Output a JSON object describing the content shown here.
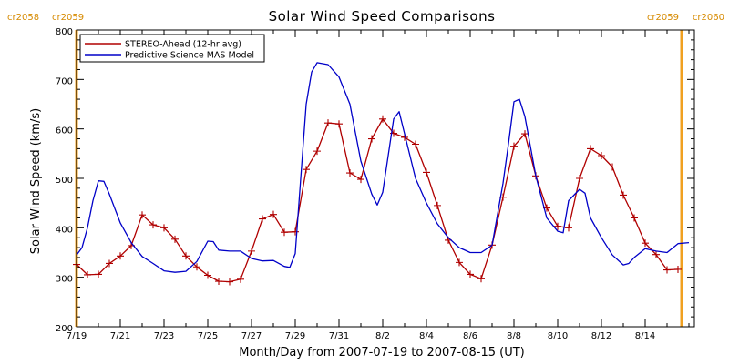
{
  "chart_data": {
    "type": "line",
    "title": "Solar Wind Speed Comparisons",
    "xlabel": "Month/Day from 2007-07-19 to 2007-08-15 (UT)",
    "ylabel": "Solar Wind Speed (km/s)",
    "ylim": [
      200,
      800
    ],
    "yticks": [
      200,
      300,
      400,
      500,
      600,
      700,
      800
    ],
    "xlim": [
      "2007-07-19T00:00",
      "2007-08-16T06:00"
    ],
    "xticks": [
      {
        "date": "2007-07-19",
        "label": "7/19"
      },
      {
        "date": "2007-07-21",
        "label": "7/21"
      },
      {
        "date": "2007-07-23",
        "label": "7/23"
      },
      {
        "date": "2007-07-25",
        "label": "7/25"
      },
      {
        "date": "2007-07-27",
        "label": "7/27"
      },
      {
        "date": "2007-07-29",
        "label": "7/29"
      },
      {
        "date": "2007-07-31",
        "label": "7/31"
      },
      {
        "date": "2007-08-02",
        "label": "8/2"
      },
      {
        "date": "2007-08-04",
        "label": "8/4"
      },
      {
        "date": "2007-08-06",
        "label": "8/6"
      },
      {
        "date": "2007-08-08",
        "label": "8/8"
      },
      {
        "date": "2007-08-10",
        "label": "8/10"
      },
      {
        "date": "2007-08-12",
        "label": "8/12"
      },
      {
        "date": "2007-08-14",
        "label": "8/14"
      }
    ],
    "grid": false,
    "legend_position": "top-left",
    "carrington_boundaries": [
      {
        "date": "2007-07-19T00:00",
        "left_label": "cr2058",
        "right_label": "cr2059",
        "label_side": "left"
      },
      {
        "date": "2007-08-15T16:00",
        "left_label": "cr2059",
        "right_label": "cr2060",
        "label_side": "right"
      }
    ],
    "boundary_color": "#f0a020",
    "series": [
      {
        "name": "STEREO-Ahead (12-hr avg)",
        "color": "#b00000",
        "markers": true,
        "points": [
          [
            "2007-07-19T00:00",
            326
          ],
          [
            "2007-07-19T12:00",
            305
          ],
          [
            "2007-07-20T00:00",
            306
          ],
          [
            "2007-07-20T12:00",
            328
          ],
          [
            "2007-07-21T00:00",
            343
          ],
          [
            "2007-07-21T12:00",
            364
          ],
          [
            "2007-07-22T00:00",
            426
          ],
          [
            "2007-07-22T12:00",
            406
          ],
          [
            "2007-07-23T00:00",
            400
          ],
          [
            "2007-07-23T12:00",
            377
          ],
          [
            "2007-07-24T00:00",
            343
          ],
          [
            "2007-07-24T12:00",
            321
          ],
          [
            "2007-07-25T00:00",
            304
          ],
          [
            "2007-07-25T12:00",
            292
          ],
          [
            "2007-07-26T00:00",
            291
          ],
          [
            "2007-07-26T12:00",
            296
          ],
          [
            "2007-07-27T00:00",
            353
          ],
          [
            "2007-07-27T12:00",
            418
          ],
          [
            "2007-07-28T00:00",
            427
          ],
          [
            "2007-07-28T12:00",
            391
          ],
          [
            "2007-07-29T00:00",
            392
          ],
          [
            "2007-07-29T12:00",
            518
          ],
          [
            "2007-07-30T00:00",
            555
          ],
          [
            "2007-07-30T12:00",
            612
          ],
          [
            "2007-07-31T00:00",
            610
          ],
          [
            "2007-07-31T12:00",
            511
          ],
          [
            "2007-08-01T00:00",
            498
          ],
          [
            "2007-08-01T12:00",
            580
          ],
          [
            "2007-08-02T00:00",
            620
          ],
          [
            "2007-08-02T12:00",
            591
          ],
          [
            "2007-08-03T00:00",
            583
          ],
          [
            "2007-08-03T12:00",
            569
          ],
          [
            "2007-08-04T00:00",
            512
          ],
          [
            "2007-08-04T12:00",
            445
          ],
          [
            "2007-08-05T00:00",
            375
          ],
          [
            "2007-08-05T12:00",
            330
          ],
          [
            "2007-08-06T00:00",
            306
          ],
          [
            "2007-08-06T12:00",
            297
          ],
          [
            "2007-08-07T00:00",
            365
          ],
          [
            "2007-08-07T12:00",
            462
          ],
          [
            "2007-08-08T00:00",
            565
          ],
          [
            "2007-08-08T12:00",
            590
          ],
          [
            "2007-08-09T00:00",
            505
          ],
          [
            "2007-08-09T12:00",
            440
          ],
          [
            "2007-08-10T00:00",
            403
          ],
          [
            "2007-08-10T12:00",
            400
          ],
          [
            "2007-08-11T00:00",
            500
          ],
          [
            "2007-08-11T12:00",
            560
          ],
          [
            "2007-08-12T00:00",
            546
          ],
          [
            "2007-08-12T12:00",
            523
          ],
          [
            "2007-08-13T00:00",
            466
          ],
          [
            "2007-08-13T12:00",
            420
          ],
          [
            "2007-08-14T00:00",
            369
          ],
          [
            "2007-08-14T12:00",
            346
          ],
          [
            "2007-08-15T00:00",
            315
          ],
          [
            "2007-08-15T12:00",
            316
          ]
        ]
      },
      {
        "name": "Predictive Science MAS Model",
        "color": "#0000c8",
        "markers": false,
        "points": [
          [
            "2007-07-19T00:00",
            345
          ],
          [
            "2007-07-19T06:00",
            360
          ],
          [
            "2007-07-19T12:00",
            400
          ],
          [
            "2007-07-19T18:00",
            455
          ],
          [
            "2007-07-20T00:00",
            495
          ],
          [
            "2007-07-20T06:00",
            494
          ],
          [
            "2007-07-20T12:00",
            468
          ],
          [
            "2007-07-21T00:00",
            410
          ],
          [
            "2007-07-21T12:00",
            370
          ],
          [
            "2007-07-22T00:00",
            342
          ],
          [
            "2007-07-22T12:00",
            328
          ],
          [
            "2007-07-23T00:00",
            313
          ],
          [
            "2007-07-23T12:00",
            310
          ],
          [
            "2007-07-24T00:00",
            312
          ],
          [
            "2007-07-24T12:00",
            332
          ],
          [
            "2007-07-25T00:00",
            373
          ],
          [
            "2007-07-25T06:00",
            372
          ],
          [
            "2007-07-25T12:00",
            355
          ],
          [
            "2007-07-26T00:00",
            353
          ],
          [
            "2007-07-26T12:00",
            353
          ],
          [
            "2007-07-27T00:00",
            338
          ],
          [
            "2007-07-27T12:00",
            333
          ],
          [
            "2007-07-28T00:00",
            334
          ],
          [
            "2007-07-28T12:00",
            322
          ],
          [
            "2007-07-28T18:00",
            320
          ],
          [
            "2007-07-29T00:00",
            348
          ],
          [
            "2007-07-29T06:00",
            500
          ],
          [
            "2007-07-29T12:00",
            650
          ],
          [
            "2007-07-29T18:00",
            715
          ],
          [
            "2007-07-30T00:00",
            734
          ],
          [
            "2007-07-30T12:00",
            730
          ],
          [
            "2007-07-31T00:00",
            705
          ],
          [
            "2007-07-31T12:00",
            650
          ],
          [
            "2007-08-01T00:00",
            535
          ],
          [
            "2007-08-01T12:00",
            468
          ],
          [
            "2007-08-01T18:00",
            446
          ],
          [
            "2007-08-02T00:00",
            472
          ],
          [
            "2007-08-02T12:00",
            620
          ],
          [
            "2007-08-02T18:00",
            635
          ],
          [
            "2007-08-03T00:00",
            590
          ],
          [
            "2007-08-03T12:00",
            500
          ],
          [
            "2007-08-04T00:00",
            450
          ],
          [
            "2007-08-04T12:00",
            408
          ],
          [
            "2007-08-05T00:00",
            380
          ],
          [
            "2007-08-05T12:00",
            360
          ],
          [
            "2007-08-06T00:00",
            350
          ],
          [
            "2007-08-06T12:00",
            350
          ],
          [
            "2007-08-07T00:00",
            365
          ],
          [
            "2007-08-07T12:00",
            490
          ],
          [
            "2007-08-07T18:00",
            570
          ],
          [
            "2007-08-08T00:00",
            655
          ],
          [
            "2007-08-08T06:00",
            660
          ],
          [
            "2007-08-08T12:00",
            625
          ],
          [
            "2007-08-09T00:00",
            505
          ],
          [
            "2007-08-09T12:00",
            420
          ],
          [
            "2007-08-10T00:00",
            393
          ],
          [
            "2007-08-10T06:00",
            390
          ],
          [
            "2007-08-10T12:00",
            455
          ],
          [
            "2007-08-11T00:00",
            478
          ],
          [
            "2007-08-11T06:00",
            470
          ],
          [
            "2007-08-11T12:00",
            420
          ],
          [
            "2007-08-12T00:00",
            380
          ],
          [
            "2007-08-12T12:00",
            345
          ],
          [
            "2007-08-13T00:00",
            325
          ],
          [
            "2007-08-13T06:00",
            328
          ],
          [
            "2007-08-13T12:00",
            340
          ],
          [
            "2007-08-14T00:00",
            358
          ],
          [
            "2007-08-14T12:00",
            353
          ],
          [
            "2007-08-15T00:00",
            350
          ],
          [
            "2007-08-15T12:00",
            368
          ],
          [
            "2007-08-16T00:00",
            370
          ]
        ]
      }
    ]
  }
}
